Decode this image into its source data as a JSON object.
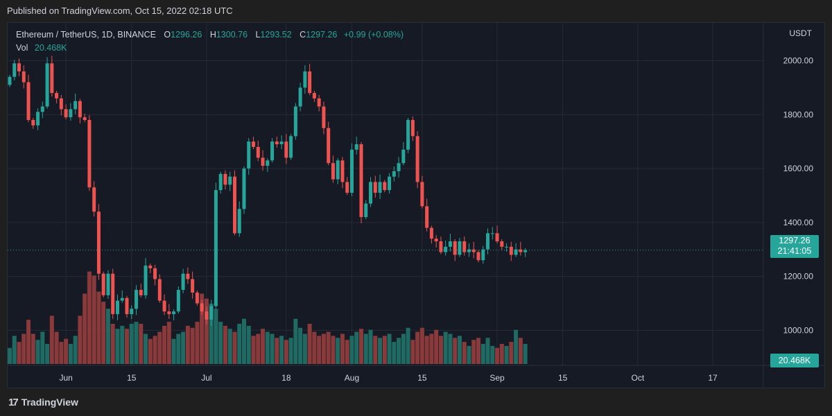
{
  "header": {
    "published": "Published on TradingView.com, Oct 15, 2022 02:18 UTC"
  },
  "legend": {
    "symbol": "Ethereum / TetherUS, 1D, BINANCE",
    "open_label": "O",
    "open": "1296.26",
    "high_label": "H",
    "high": "1300.76",
    "low_label": "L",
    "low": "1293.52",
    "close_label": "C",
    "close": "1297.26",
    "change": "+0.99 (+0.08%)",
    "vol_label": "Vol",
    "vol_value": "20.468K"
  },
  "axis": {
    "unit": "USDT"
  },
  "price_tag": {
    "price": "1297.26",
    "countdown": "21:41:05"
  },
  "volume_tag": "20.468K",
  "footer": {
    "brand": "TradingView",
    "logo_glyph": "17"
  },
  "colors": {
    "up": "#26a69a",
    "down": "#ef5350",
    "up_vol": "#1f6b63",
    "down_vol": "#8a3a3a",
    "grid": "#252a36"
  },
  "chart_data": {
    "type": "candlestick",
    "title": "Ethereum / TetherUS, 1D, BINANCE",
    "y_ticks": [
      "2000.00",
      "1800.00",
      "1600.00",
      "1400.00",
      "1200.00",
      "1000.00"
    ],
    "y_tick_values": [
      2000,
      1800,
      1600,
      1400,
      1200,
      1000
    ],
    "ylim": [
      870,
      2140
    ],
    "x_ticks": [
      {
        "label": "Jun",
        "index": 12
      },
      {
        "label": "15",
        "index": 26
      },
      {
        "label": "Jul",
        "index": 42
      },
      {
        "label": "18",
        "index": 59
      },
      {
        "label": "Aug",
        "index": 73
      },
      {
        "label": "15",
        "index": 88
      },
      {
        "label": "Sep",
        "index": 104
      },
      {
        "label": "15",
        "index": 118
      },
      {
        "label": "Oct",
        "index": 134
      },
      {
        "label": "17",
        "index": 150
      }
    ],
    "last_price": 1297.26,
    "closes": [
      1940,
      1990,
      1960,
      1920,
      1780,
      1760,
      1810,
      1830,
      1990,
      1880,
      1860,
      1820,
      1790,
      1820,
      1850,
      1790,
      1780,
      1530,
      1440,
      1210,
      1130,
      1210,
      1060,
      1110,
      1120,
      1060,
      1080,
      1150,
      1130,
      1240,
      1230,
      1190,
      1110,
      1070,
      1060,
      1070,
      1150,
      1210,
      1190,
      1140,
      1100,
      1070,
      1040,
      1090,
      1520,
      1580,
      1540,
      1570,
      1360,
      1450,
      1600,
      1700,
      1680,
      1640,
      1610,
      1630,
      1700,
      1690,
      1700,
      1640,
      1720,
      1830,
      1900,
      1960,
      1880,
      1860,
      1830,
      1750,
      1620,
      1560,
      1630,
      1550,
      1510,
      1670,
      1690,
      1420,
      1470,
      1550,
      1510,
      1550,
      1520,
      1570,
      1590,
      1620,
      1670,
      1780,
      1720,
      1550,
      1460,
      1380,
      1340,
      1330,
      1290,
      1310,
      1330,
      1280,
      1330,
      1290,
      1300,
      1290,
      1260,
      1300,
      1360,
      1360,
      1330,
      1310,
      1310,
      1280,
      1300,
      1290,
      1297
    ],
    "volumes_k": [
      16,
      28,
      22,
      30,
      44,
      30,
      24,
      32,
      20,
      48,
      32,
      22,
      25,
      20,
      28,
      48,
      70,
      92,
      88,
      72,
      62,
      55,
      40,
      35,
      38,
      35,
      40,
      42,
      40,
      30,
      25,
      28,
      32,
      38,
      42,
      25,
      30,
      32,
      38,
      36,
      42,
      70,
      65,
      60,
      55,
      42,
      38,
      35,
      32,
      40,
      45,
      38,
      28,
      30,
      35,
      32,
      30,
      26,
      28,
      24,
      26,
      45,
      36,
      30,
      40,
      32,
      28,
      30,
      32,
      28,
      26,
      30,
      24,
      28,
      32,
      35,
      30,
      34,
      28,
      26,
      28,
      30,
      22,
      26,
      30,
      36,
      24,
      32,
      36,
      28,
      30,
      34,
      28,
      32,
      30,
      26,
      28,
      22,
      18,
      24,
      26,
      20,
      26,
      18,
      16,
      20,
      18,
      22,
      34,
      26,
      20
    ]
  }
}
